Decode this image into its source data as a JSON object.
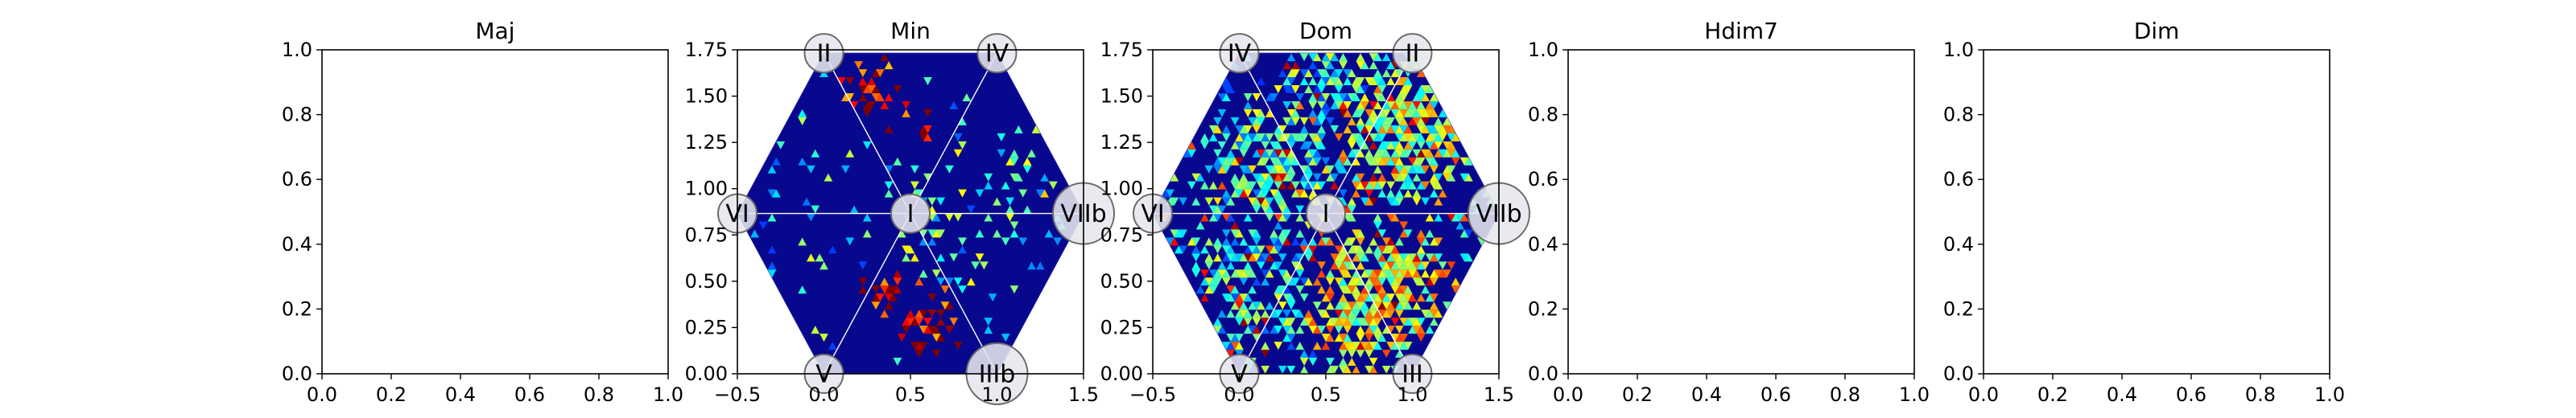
{
  "figure": {
    "style": {
      "background": "#ffffff",
      "hex_fill": "#08088e",
      "hex_edge": "#1a1aa6",
      "spoke_color": "#ffffff",
      "node_fill": "#e6e6ee",
      "node_stroke": "#6a6a6a"
    },
    "colormap": "jet"
  },
  "chart_data": [
    {
      "type": "heatmap",
      "title": "Maj",
      "xlim": [
        0.0,
        1.0
      ],
      "ylim": [
        0.0,
        1.0
      ],
      "xticks": [
        "0.0",
        "0.2",
        "0.4",
        "0.6",
        "0.8",
        "1.0"
      ],
      "yticks": [
        "0.0",
        "0.2",
        "0.4",
        "0.6",
        "0.8",
        "1.0"
      ],
      "empty": true
    },
    {
      "type": "heatmap",
      "title": "Min",
      "xlim": [
        -0.5,
        1.5
      ],
      "ylim": [
        0.0,
        1.75
      ],
      "xticks": [
        "−0.5",
        "0.0",
        "0.5",
        "1.0",
        "1.5"
      ],
      "yticks": [
        "0.00",
        "0.25",
        "0.50",
        "0.75",
        "1.00",
        "1.25",
        "1.50",
        "1.75"
      ],
      "hexagon": {
        "center": [
          0.5,
          0.866
        ],
        "radius": 1.0
      },
      "nodes": [
        {
          "label": "I",
          "x": 0.5,
          "y": 0.866,
          "big": false
        },
        {
          "label": "II",
          "x": 0.0,
          "y": 1.732,
          "big": false
        },
        {
          "label": "IV",
          "x": 1.0,
          "y": 1.732,
          "big": false
        },
        {
          "label": "VI",
          "x": -0.5,
          "y": 0.866,
          "big": false
        },
        {
          "label": "VIIb",
          "x": 1.5,
          "y": 0.866,
          "big": true
        },
        {
          "label": "V",
          "x": 0.0,
          "y": 0.0,
          "big": false
        },
        {
          "label": "IIIb",
          "x": 1.0,
          "y": 0.0,
          "big": true
        }
      ],
      "density": {
        "base": 0.02,
        "hotspots": [
          {
            "x": 0.25,
            "y": 1.55,
            "value": 0.9,
            "spread": 0.09,
            "rate": 0.55
          },
          {
            "x": 0.55,
            "y": 1.35,
            "value": 0.9,
            "spread": 0.08,
            "rate": 0.35
          },
          {
            "x": 0.35,
            "y": 0.4,
            "value": 0.9,
            "spread": 0.08,
            "rate": 0.4
          },
          {
            "x": 0.6,
            "y": 0.3,
            "value": 0.92,
            "spread": 0.1,
            "rate": 0.55
          },
          {
            "x": 0.8,
            "y": 0.85,
            "value": 0.42,
            "spread": 0.3,
            "rate": 0.18
          },
          {
            "x": 0.0,
            "y": 0.8,
            "value": 0.4,
            "spread": 0.28,
            "rate": 0.1
          },
          {
            "x": 1.15,
            "y": 1.05,
            "value": 0.45,
            "spread": 0.2,
            "rate": 0.15
          }
        ],
        "seed": 7
      }
    },
    {
      "type": "heatmap",
      "title": "Dom",
      "xlim": [
        -0.5,
        1.5
      ],
      "ylim": [
        0.0,
        1.75
      ],
      "xticks": [
        "−0.5",
        "0.0",
        "0.5",
        "1.0",
        "1.5"
      ],
      "yticks": [
        "0.00",
        "0.25",
        "0.50",
        "0.75",
        "1.00",
        "1.25",
        "1.50",
        "1.75"
      ],
      "hexagon": {
        "center": [
          0.5,
          0.866
        ],
        "radius": 1.0
      },
      "nodes": [
        {
          "label": "I",
          "x": 0.5,
          "y": 0.866,
          "big": false
        },
        {
          "label": "IV",
          "x": 0.0,
          "y": 1.732,
          "big": false
        },
        {
          "label": "II",
          "x": 1.0,
          "y": 1.732,
          "big": false
        },
        {
          "label": "VI",
          "x": -0.5,
          "y": 0.866,
          "big": false
        },
        {
          "label": "VIIb",
          "x": 1.5,
          "y": 0.866,
          "big": true
        },
        {
          "label": "V",
          "x": 0.0,
          "y": 0.0,
          "big": false
        },
        {
          "label": "III",
          "x": 1.0,
          "y": 0.0,
          "big": false
        }
      ],
      "density": {
        "base": 0.22,
        "hotspots": [
          {
            "x": 0.95,
            "y": 1.3,
            "value": 0.55,
            "spread": 0.3,
            "rate": 0.85
          },
          {
            "x": 0.8,
            "y": 0.45,
            "value": 0.6,
            "spread": 0.3,
            "rate": 0.85
          },
          {
            "x": 0.2,
            "y": 1.1,
            "value": 0.45,
            "spread": 0.3,
            "rate": 0.75
          },
          {
            "x": 0.1,
            "y": 0.55,
            "value": 0.4,
            "spread": 0.3,
            "rate": 0.65
          },
          {
            "x": 0.55,
            "y": 1.55,
            "value": 0.4,
            "spread": 0.25,
            "rate": 0.6
          }
        ],
        "seed": 19
      }
    },
    {
      "type": "heatmap",
      "title": "Hdim7",
      "xlim": [
        0.0,
        1.0
      ],
      "ylim": [
        0.0,
        1.0
      ],
      "xticks": [
        "0.0",
        "0.2",
        "0.4",
        "0.6",
        "0.8",
        "1.0"
      ],
      "yticks": [
        "0.0",
        "0.2",
        "0.4",
        "0.6",
        "0.8",
        "1.0"
      ],
      "empty": true
    },
    {
      "type": "heatmap",
      "title": "Dim",
      "xlim": [
        0.0,
        1.0
      ],
      "ylim": [
        0.0,
        1.0
      ],
      "xticks": [
        "0.0",
        "0.2",
        "0.4",
        "0.6",
        "0.8",
        "1.0"
      ],
      "yticks": [
        "0.0",
        "0.2",
        "0.4",
        "0.6",
        "0.8",
        "1.0"
      ],
      "empty": true
    }
  ]
}
